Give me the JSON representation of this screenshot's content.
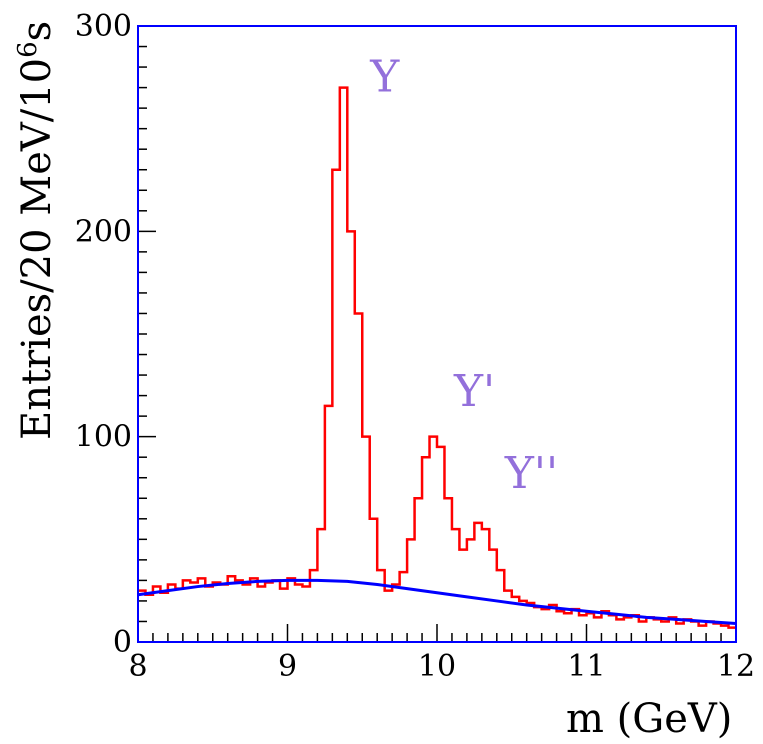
{
  "chart_data": {
    "type": "line",
    "xlabel": "m (GeV)",
    "ylabel": "Entries/20 MeV/10",
    "ylabel_superscript": "6",
    "ylabel_suffix": "s",
    "xlim": [
      8,
      12
    ],
    "ylim": [
      0,
      300
    ],
    "x_ticks": [
      8,
      9,
      10,
      11,
      12
    ],
    "y_ticks": [
      0,
      100,
      200,
      300
    ],
    "colors": {
      "data": "#ff0000",
      "background_fit": "#0000ff",
      "annotation": "#9370db",
      "frame": "#0000ff"
    },
    "annotations": [
      {
        "text": "Υ",
        "x": 9.46,
        "y": 268
      },
      {
        "text": "Υ'",
        "x": 10.02,
        "y": 115
      },
      {
        "text": "Υ''",
        "x": 10.36,
        "y": 75
      }
    ],
    "series": [
      {
        "name": "data",
        "style": "step",
        "x": [
          8.0,
          8.05,
          8.1,
          8.15,
          8.2,
          8.25,
          8.3,
          8.35,
          8.4,
          8.45,
          8.5,
          8.55,
          8.6,
          8.65,
          8.7,
          8.75,
          8.8,
          8.85,
          8.9,
          8.95,
          9.0,
          9.05,
          9.1,
          9.15,
          9.2,
          9.25,
          9.3,
          9.35,
          9.4,
          9.45,
          9.5,
          9.55,
          9.6,
          9.65,
          9.7,
          9.75,
          9.8,
          9.85,
          9.9,
          9.95,
          10.0,
          10.05,
          10.1,
          10.15,
          10.2,
          10.25,
          10.3,
          10.35,
          10.4,
          10.45,
          10.5,
          10.55,
          10.6,
          10.65,
          10.7,
          10.75,
          10.8,
          10.85,
          10.9,
          10.95,
          11.0,
          11.05,
          11.1,
          11.15,
          11.2,
          11.25,
          11.3,
          11.35,
          11.4,
          11.45,
          11.5,
          11.55,
          11.6,
          11.65,
          11.7,
          11.75,
          11.8,
          11.85,
          11.9,
          11.95
        ],
        "values": [
          25,
          23,
          27,
          24,
          28,
          26,
          30,
          29,
          31,
          27,
          29,
          28,
          32,
          30,
          28,
          31,
          27,
          29,
          30,
          26,
          31,
          28,
          27,
          35,
          55,
          115,
          230,
          270,
          200,
          160,
          100,
          60,
          35,
          25,
          28,
          34,
          50,
          70,
          90,
          100,
          95,
          70,
          55,
          45,
          50,
          58,
          55,
          45,
          35,
          25,
          22,
          20,
          19,
          17,
          16,
          18,
          15,
          14,
          16,
          13,
          14,
          12,
          15,
          13,
          11,
          12,
          13,
          10,
          12,
          11,
          10,
          12,
          9,
          11,
          10,
          8,
          10,
          9,
          8,
          7
        ]
      },
      {
        "name": "background fit",
        "style": "line",
        "x": [
          8.0,
          8.2,
          8.4,
          8.6,
          8.8,
          9.0,
          9.2,
          9.4,
          9.6,
          9.8,
          10.0,
          10.2,
          10.4,
          10.6,
          10.8,
          11.0,
          11.2,
          11.4,
          11.6,
          11.8,
          12.0
        ],
        "values": [
          23,
          25,
          27,
          28.5,
          29.5,
          30,
          30,
          29.5,
          28,
          26,
          24,
          22,
          20,
          18,
          16.5,
          15,
          13.5,
          12,
          11,
          10,
          9
        ]
      }
    ]
  }
}
